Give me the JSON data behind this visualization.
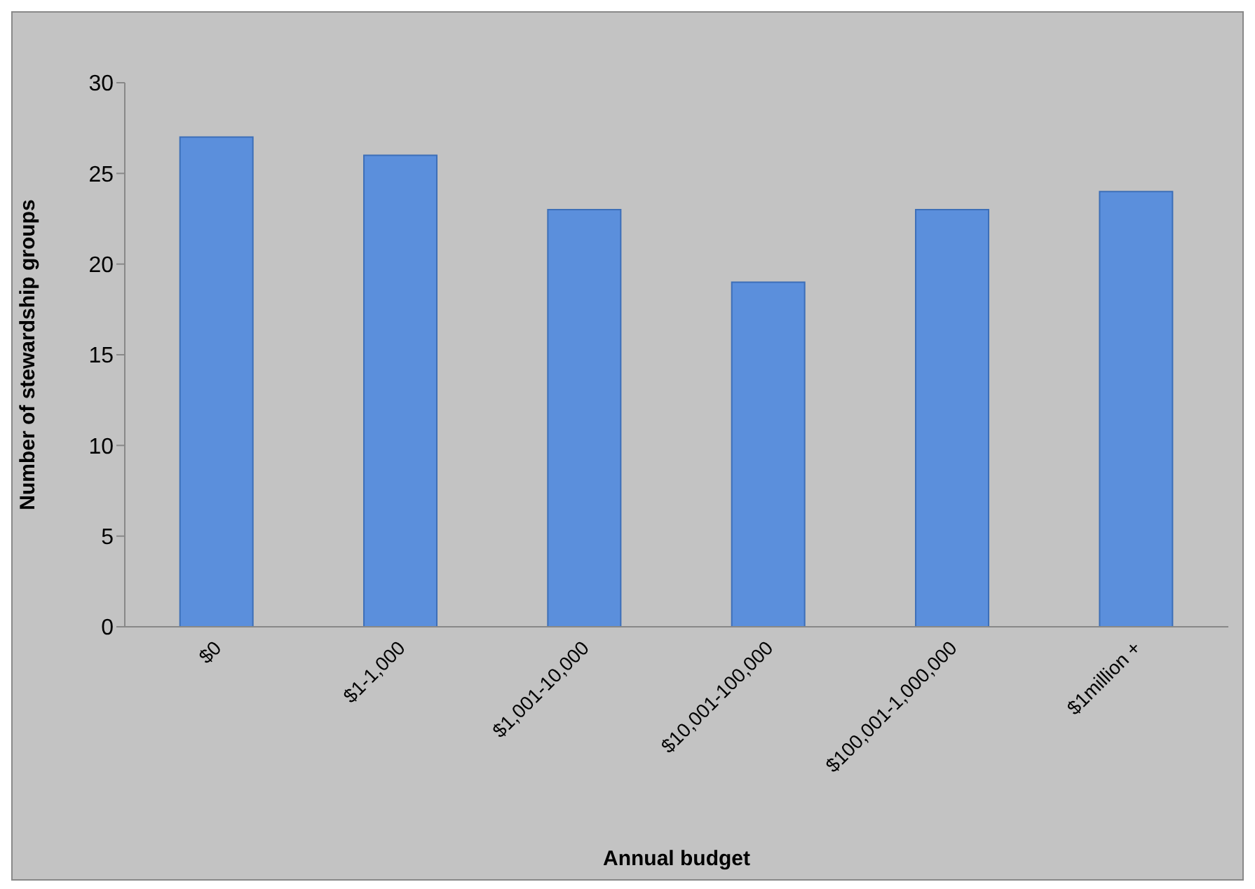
{
  "chart_data": {
    "type": "bar",
    "xlabel": "Annual budget",
    "ylabel": "Number of stewardship groups",
    "categories": [
      "$0",
      "$1-1,000",
      "$1,001-10,000",
      "$10,001-100,000",
      "$100,001-1,000,000",
      "$1million +"
    ],
    "values": [
      27,
      26,
      23,
      19,
      23,
      24
    ],
    "color": "#5b8fdc",
    "ylim": [
      0,
      30
    ],
    "yticks": [
      0,
      5,
      10,
      15,
      20,
      25,
      30
    ],
    "grid": false,
    "legend": false
  }
}
